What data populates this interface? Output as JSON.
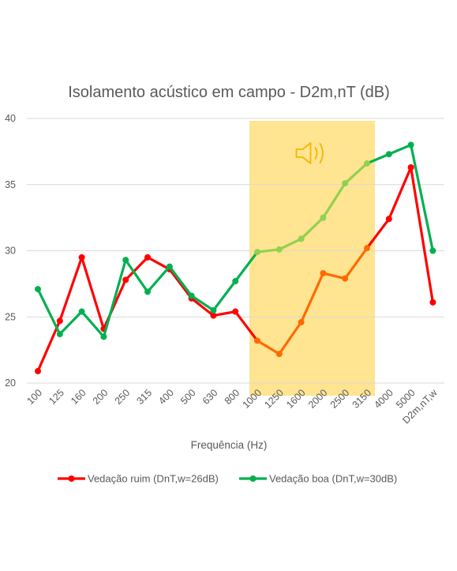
{
  "chart_data": {
    "type": "line",
    "title": "Isolamento acústico em campo - D2m,nT (dB)",
    "xlabel": "Frequência (Hz)",
    "ylabel": "",
    "ylim": [
      20,
      40
    ],
    "yticks": [
      "20",
      "25",
      "30",
      "35",
      "40"
    ],
    "grid": "horizontal",
    "legend_position": "bottom",
    "categories": [
      "100",
      "125",
      "160",
      "200",
      "250",
      "315",
      "400",
      "500",
      "630",
      "800",
      "1000",
      "1250",
      "1600",
      "2000",
      "2500",
      "3150",
      "4000",
      "5000",
      "D2m,nT,w"
    ],
    "series": [
      {
        "name": "Vedação ruim (DnT,w=26dB)",
        "color": "#ff0000",
        "highlight_color": "#ff6a00",
        "values": [
          20.9,
          24.7,
          29.5,
          24.1,
          27.8,
          29.5,
          28.6,
          26.4,
          25.1,
          25.4,
          23.2,
          22.2,
          24.6,
          28.3,
          27.9,
          30.2,
          32.4,
          36.3,
          26.1
        ]
      },
      {
        "name": "Vedação boa (DnT,w=30dB)",
        "color": "#00b050",
        "highlight_color": "#92d050",
        "values": [
          27.1,
          23.7,
          25.4,
          23.5,
          29.3,
          26.9,
          28.8,
          26.6,
          25.5,
          27.7,
          29.9,
          30.1,
          30.9,
          32.5,
          35.1,
          36.6,
          37.3,
          38.0,
          30.0
        ]
      }
    ],
    "highlight_band": {
      "from_category": "1000",
      "to_category": "3150",
      "color": "#ffd966",
      "icon": "speaker-sound-icon"
    }
  }
}
